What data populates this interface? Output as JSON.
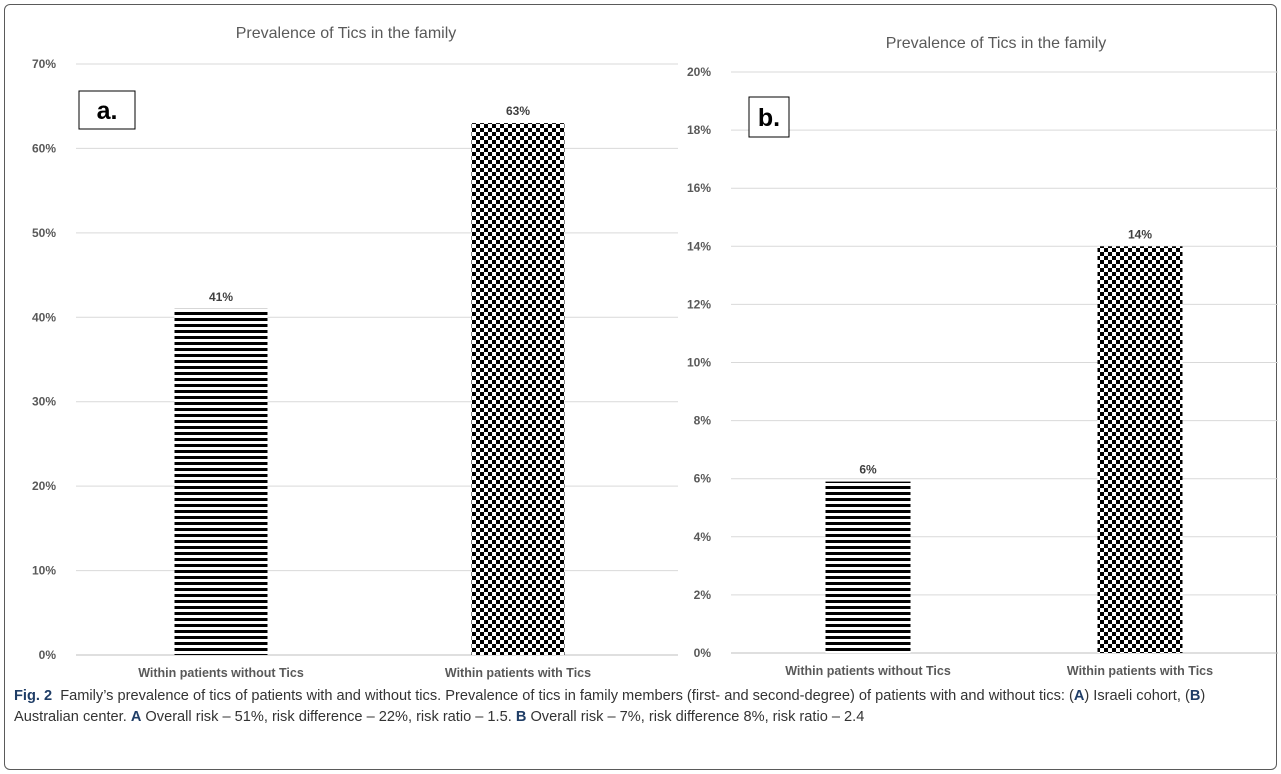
{
  "chart_data": [
    {
      "type": "bar",
      "panel_label": "a.",
      "title": "Prevalence of Tics in the family",
      "categories": [
        "Within patients without Tics",
        "Within patients with Tics"
      ],
      "values": [
        41,
        63
      ],
      "data_labels": [
        "41%",
        "63%"
      ],
      "patterns": [
        "horizontal-stripes",
        "checkerboard"
      ],
      "ylim": [
        0,
        70
      ],
      "yticks": [
        0,
        10,
        20,
        30,
        40,
        50,
        60,
        70
      ],
      "ytick_labels": [
        "0%",
        "10%",
        "20%",
        "30%",
        "40%",
        "50%",
        "60%",
        "70%"
      ],
      "grid": true,
      "legend": "none"
    },
    {
      "type": "bar",
      "panel_label": "b.",
      "title": "Prevalence of Tics in the family",
      "categories": [
        "Within patients without Tics",
        "Within patients with Tics"
      ],
      "values": [
        5.9,
        14
      ],
      "data_labels": [
        "6%",
        "14%"
      ],
      "patterns": [
        "horizontal-stripes",
        "checkerboard"
      ],
      "ylim": [
        0,
        20
      ],
      "yticks": [
        0,
        2,
        4,
        6,
        8,
        10,
        12,
        14,
        16,
        18,
        20
      ],
      "ytick_labels": [
        "0%",
        "2%",
        "4%",
        "6%",
        "8%",
        "10%",
        "12%",
        "14%",
        "16%",
        "18%",
        "20%"
      ],
      "grid": true,
      "legend": "none"
    }
  ],
  "caption": {
    "label": "Fig. 2",
    "text_1": "Family’s prevalence of tics of patients with and without tics. Prevalence of tics in family members (first- and second-degree) of patients with and without tics: (",
    "ref_a1": "A",
    "text_2": ") Israeli cohort, (",
    "ref_b1": "B",
    "text_3": ") Australian center. ",
    "ref_a2": "A",
    "text_4": " Overall risk – 51%, risk difference – 22%, risk ratio – 1.5. ",
    "ref_b2": "B",
    "text_5": " Overall risk – 7%, risk difference 8%, risk ratio – 2.4"
  },
  "colors": {
    "grid": "#d9d9d9",
    "axis": "#bfbfbf",
    "text": "#595959",
    "bar": "#000000",
    "caption_label": "#1f3d66"
  }
}
